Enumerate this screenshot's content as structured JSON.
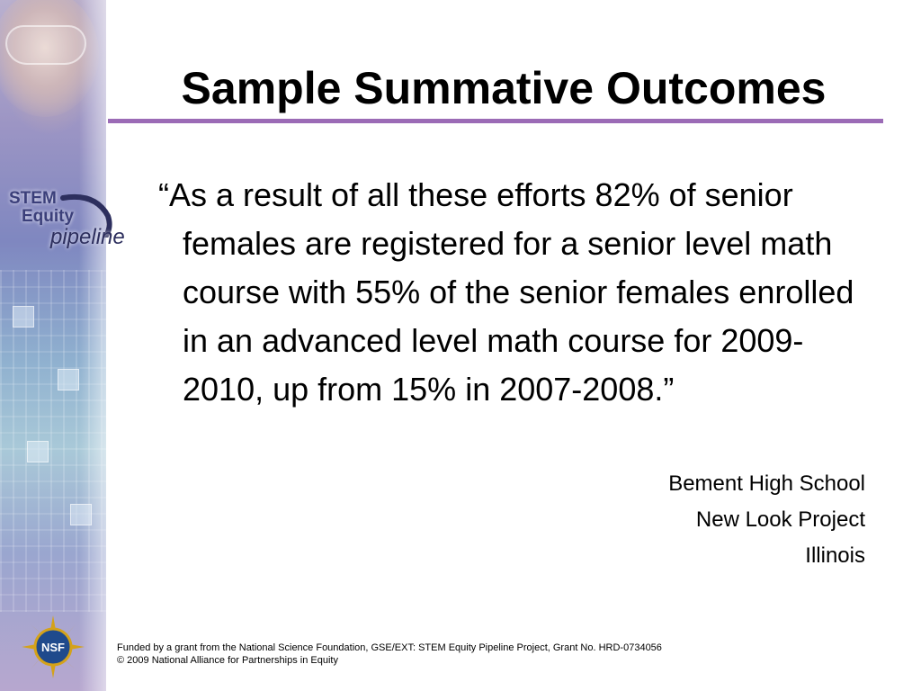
{
  "slide": {
    "title": "Sample Summative Outcomes",
    "quote": "“As a result of all these efforts 82% of senior females are registered for a senior level math course with 55% of the senior females enrolled in an advanced level math course for 2009-2010, up from 15% in 2007-2008.”",
    "attribution": {
      "line1": "Bement High School",
      "line2": "New Look Project",
      "line3": "Illinois"
    }
  },
  "logo": {
    "line1": "STEM",
    "line2": "Equity",
    "line3": "pipeline",
    "icon": "stem-equity-pipeline-logo"
  },
  "seal": {
    "text": "NSF",
    "icon": "nsf-seal-icon"
  },
  "footer": {
    "line1": "Funded by a grant from the National Science Foundation, GSE/EXT: STEM Equity Pipeline Project, Grant No. HRD-0734056",
    "line2": "© 2009 National Alliance for Partnerships in Equity"
  },
  "colors": {
    "title_rule": "#9b6bb6",
    "logo_text": "#3b3f7a",
    "seal_gold": "#d4a21a",
    "seal_blue": "#1f4a8c"
  }
}
